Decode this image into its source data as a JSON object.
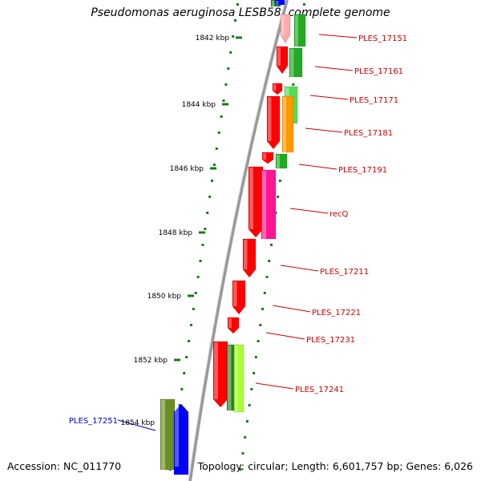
{
  "title": "Pseudomonas aeruginosa LESB58, complete genome",
  "accession_text": "Accession: NC_011770",
  "topology_text": "Topology: circular; Length: 6,601,757 bp; Genes: 6,026",
  "colors": {
    "backbone": "#999999",
    "tick": "#1a7a1a",
    "gene_red": "#ff0000",
    "gene_green": "#22aa22",
    "gene_lightgreen": "#55dd55",
    "gene_darkgreen": "#228822",
    "gene_olive": "#6b8e23",
    "gene_orange": "#ff9900",
    "gene_magenta": "#ff1493",
    "gene_yellowgreen": "#aaff33",
    "gene_blue": "#0000ff",
    "gene_pink": "#ffaaaa",
    "label_red": "#cc0000",
    "label_blue": "#0000cc"
  },
  "scale_labels": [
    "1842 kbp",
    "1844 kbp",
    "1846 kbp",
    "1848 kbp",
    "1850 kbp",
    "1852 kbp",
    "1854 kbp"
  ],
  "gene_labels": [
    {
      "text": "PLES_17151",
      "color": "label_red"
    },
    {
      "text": "PLES_17161",
      "color": "label_red"
    },
    {
      "text": "PLES_17171",
      "color": "label_red"
    },
    {
      "text": "PLES_17181",
      "color": "label_red"
    },
    {
      "text": "PLES_17191",
      "color": "label_red"
    },
    {
      "text": "recQ",
      "color": "label_red"
    },
    {
      "text": "PLES_17211",
      "color": "label_red"
    },
    {
      "text": "PLES_17221",
      "color": "label_red"
    },
    {
      "text": "PLES_17231",
      "color": "label_red"
    },
    {
      "text": "PLES_17241",
      "color": "label_red"
    },
    {
      "text": "PLES_17251",
      "color": "label_blue"
    }
  ]
}
